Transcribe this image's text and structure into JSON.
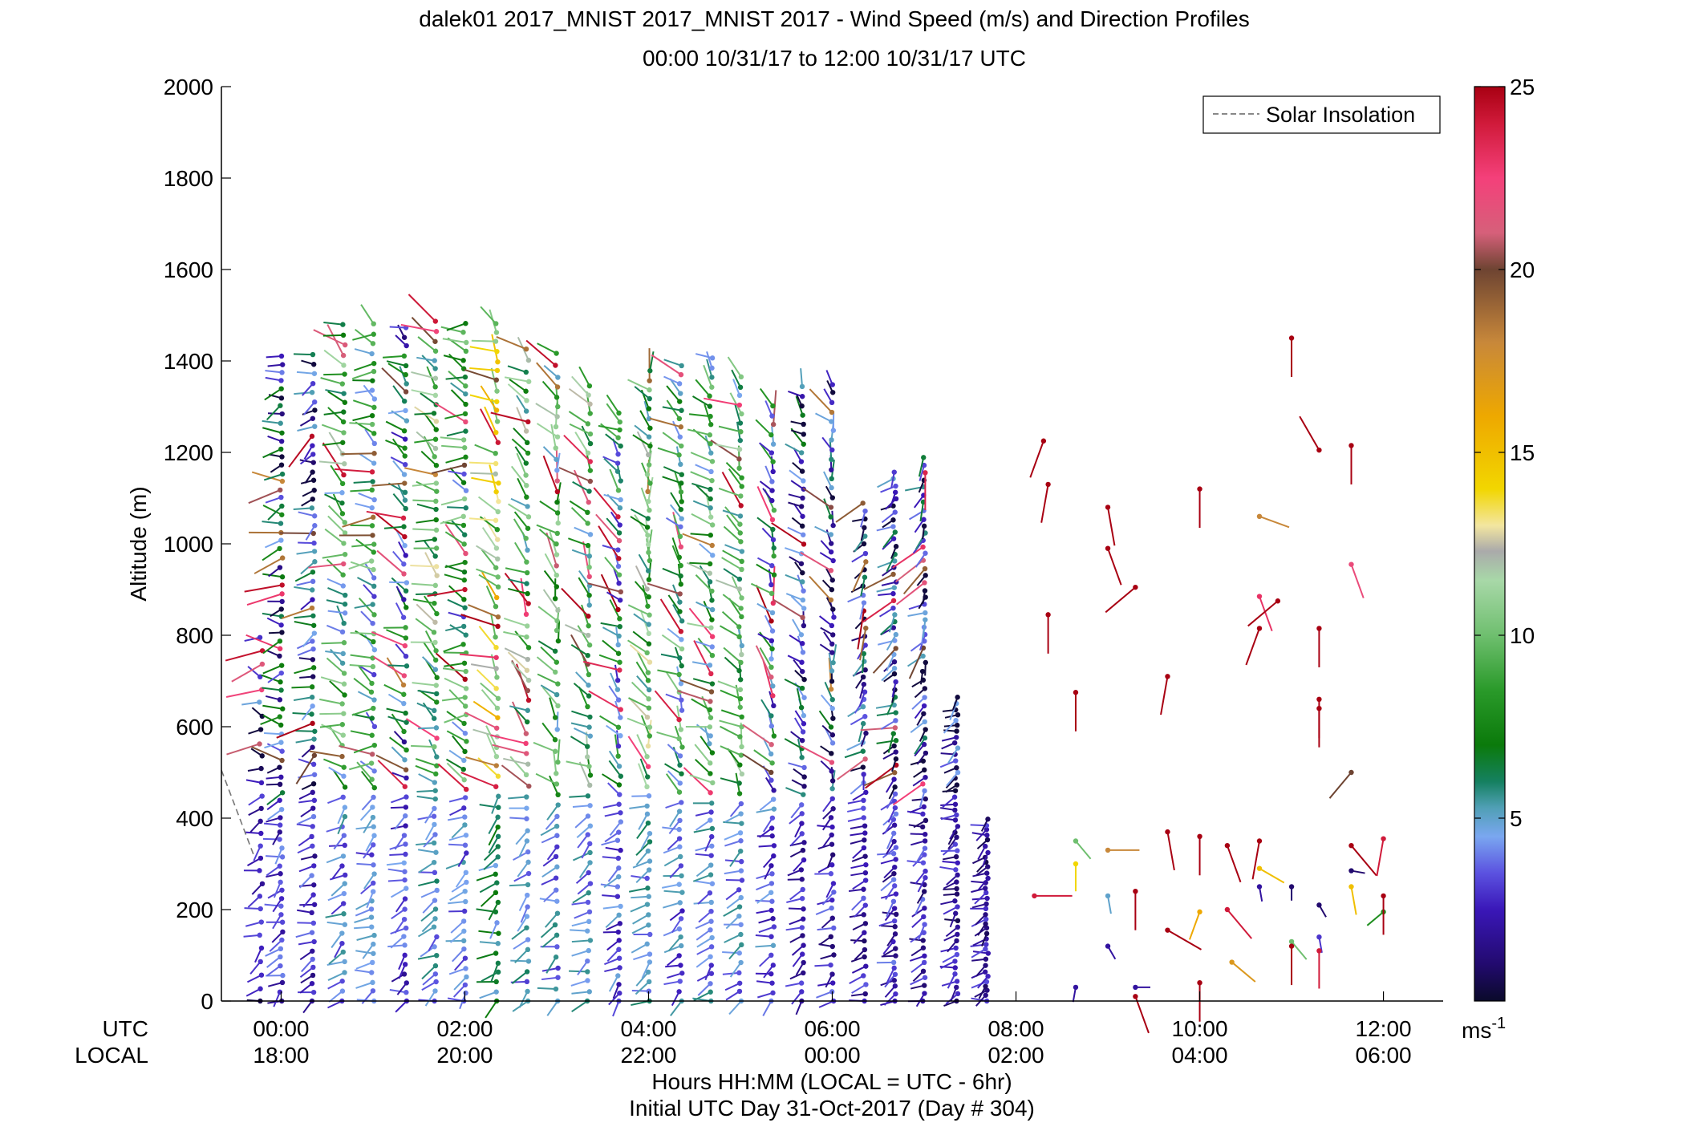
{
  "chart_data": {
    "type": "wind-barb-profile",
    "title_line1": "dalek01 2017_MNIST 2017_MNIST 2017 - Wind Speed (m/s) and Direction Profiles",
    "title_line2": "00:00 10/31/17 to 12:00 10/31/17  UTC",
    "ylabel": "Altitude (m)",
    "xlabel": "Hours HH:MM  (LOCAL = UTC - 6hr)",
    "xlabel2": "Initial UTC Day 31-Oct-2017 (Day # 304)",
    "utc_row_label": "UTC",
    "local_row_label": "LOCAL",
    "xlim_hours": [
      -0.65,
      12.65
    ],
    "ylim": [
      0,
      2000
    ],
    "y_ticks": [
      0,
      200,
      400,
      600,
      800,
      1000,
      1200,
      1400,
      1600,
      1800,
      2000
    ],
    "x_ticks_hours": [
      0,
      2,
      4,
      6,
      8,
      10,
      12
    ],
    "x_tick_labels_utc": [
      "00:00",
      "02:00",
      "04:00",
      "06:00",
      "08:00",
      "10:00",
      "12:00"
    ],
    "x_tick_labels_local": [
      "18:00",
      "20:00",
      "22:00",
      "00:00",
      "02:00",
      "04:00",
      "06:00"
    ],
    "legend": {
      "label": "Solar Insolation",
      "location": "top-right",
      "style": "dashed-gray"
    },
    "solar_insolation_line": {
      "color": "#777777",
      "x_hours": [
        -0.65,
        -0.3
      ],
      "y": [
        505,
        320
      ]
    },
    "colorbar": {
      "range": [
        0,
        25
      ],
      "ticks": [
        5,
        10,
        15,
        20,
        25
      ],
      "unit_label": "ms",
      "unit_exponent": "-1",
      "stops": [
        {
          "v": 0,
          "c": "#0a0a2a"
        },
        {
          "v": 1,
          "c": "#220a6e"
        },
        {
          "v": 2.5,
          "c": "#3a17b8"
        },
        {
          "v": 3.5,
          "c": "#5b52e0"
        },
        {
          "v": 4.5,
          "c": "#7aa7f0"
        },
        {
          "v": 5.3,
          "c": "#4f9fb4"
        },
        {
          "v": 6,
          "c": "#158060"
        },
        {
          "v": 7,
          "c": "#0b7a0b"
        },
        {
          "v": 8.5,
          "c": "#2a9a2a"
        },
        {
          "v": 10,
          "c": "#6fbf6f"
        },
        {
          "v": 11.5,
          "c": "#a8d8a8"
        },
        {
          "v": 12.3,
          "c": "#aaaaaa"
        },
        {
          "v": 13,
          "c": "#f3e6a0"
        },
        {
          "v": 14,
          "c": "#f2d600"
        },
        {
          "v": 16,
          "c": "#eea800"
        },
        {
          "v": 18,
          "c": "#c8883a"
        },
        {
          "v": 20,
          "c": "#6e4432"
        },
        {
          "v": 21,
          "c": "#d6607a"
        },
        {
          "v": 22.5,
          "c": "#f4407a"
        },
        {
          "v": 24,
          "c": "#d01a3a"
        },
        {
          "v": 25,
          "c": "#a80012"
        }
      ]
    },
    "profiles": [
      {
        "t": -0.22,
        "spd": 1.5,
        "dir": 280,
        "alt_range": [
          0,
          800
        ],
        "spacing": 30
      },
      {
        "t": 0.0,
        "spd": 4.0,
        "dir": 260,
        "alt_range": [
          0,
          1420
        ],
        "spacing": 18
      },
      {
        "t": 0.35,
        "spd": 3.5,
        "dir": 250,
        "alt_range": [
          0,
          1420
        ],
        "spacing": 20
      },
      {
        "t": 0.68,
        "spd": 8.0,
        "dir": 300,
        "alt_range": [
          0,
          1490
        ],
        "spacing": 22
      },
      {
        "t": 1.0,
        "spd": 7.0,
        "dir": 290,
        "alt_range": [
          0,
          1490
        ],
        "spacing": 20
      },
      {
        "t": 1.35,
        "spd": 5.0,
        "dir": 300,
        "alt_range": [
          0,
          1490
        ],
        "spacing": 20
      },
      {
        "t": 1.68,
        "spd": 9.0,
        "dir": 300,
        "alt_range": [
          0,
          1490
        ],
        "spacing": 20
      },
      {
        "t": 2.0,
        "spd": 7.0,
        "dir": 290,
        "alt_range": [
          0,
          1490
        ],
        "spacing": 20
      },
      {
        "t": 2.35,
        "spd": 12.0,
        "dir": 310,
        "alt_range": [
          0,
          1490
        ],
        "spacing": 22
      },
      {
        "t": 2.68,
        "spd": 9.0,
        "dir": 320,
        "alt_range": [
          0,
          1450
        ],
        "spacing": 24
      },
      {
        "t": 3.0,
        "spd": 8.0,
        "dir": 330,
        "alt_range": [
          0,
          1420
        ],
        "spacing": 24
      },
      {
        "t": 3.35,
        "spd": 8.5,
        "dir": 320,
        "alt_range": [
          0,
          1350
        ],
        "spacing": 22
      },
      {
        "t": 3.68,
        "spd": 6.0,
        "dir": 320,
        "alt_range": [
          0,
          1300
        ],
        "spacing": 20
      },
      {
        "t": 4.0,
        "spd": 9.0,
        "dir": 330,
        "alt_range": [
          0,
          1390
        ],
        "spacing": 20
      },
      {
        "t": 4.35,
        "spd": 7.0,
        "dir": 320,
        "alt_range": [
          0,
          1400
        ],
        "spacing": 20
      },
      {
        "t": 4.68,
        "spd": 8.0,
        "dir": 310,
        "alt_range": [
          0,
          1420
        ],
        "spacing": 20
      },
      {
        "t": 5.0,
        "spd": 8.0,
        "dir": 320,
        "alt_range": [
          0,
          1380
        ],
        "spacing": 20
      },
      {
        "t": 5.35,
        "spd": 6.0,
        "dir": 330,
        "alt_range": [
          0,
          1320
        ],
        "spacing": 20
      },
      {
        "t": 5.68,
        "spd": 3.0,
        "dir": 320,
        "alt_range": [
          0,
          1350
        ],
        "spacing": 20
      },
      {
        "t": 6.0,
        "spd": 3.0,
        "dir": 330,
        "alt_range": [
          0,
          1350
        ],
        "spacing": 20
      },
      {
        "t": 6.35,
        "spd": 2.5,
        "dir": 220,
        "alt_range": [
          0,
          1100
        ],
        "spacing": 18
      },
      {
        "t": 6.68,
        "spd": 3.0,
        "dir": 230,
        "alt_range": [
          0,
          1170
        ],
        "spacing": 14
      },
      {
        "t": 7.0,
        "spd": 2.5,
        "dir": 220,
        "alt_range": [
          0,
          1200
        ],
        "spacing": 16
      },
      {
        "t": 7.35,
        "spd": 1.5,
        "dir": 240,
        "alt_range": [
          0,
          680
        ],
        "spacing": 12
      },
      {
        "t": 7.68,
        "spd": 1.2,
        "dir": 250,
        "alt_range": [
          0,
          400
        ],
        "spacing": 10
      }
    ],
    "scattered_barbs": [
      {
        "t": 8.3,
        "alt": 1225,
        "spd": 25,
        "dir": 200
      },
      {
        "t": 8.35,
        "alt": 1130,
        "spd": 25,
        "dir": 190
      },
      {
        "t": 8.35,
        "alt": 845,
        "spd": 25,
        "dir": 180
      },
      {
        "t": 8.2,
        "alt": 230,
        "spd": 24,
        "dir": 90
      },
      {
        "t": 8.65,
        "alt": 675,
        "spd": 25,
        "dir": 180
      },
      {
        "t": 9.0,
        "alt": 1080,
        "spd": 25,
        "dir": 170
      },
      {
        "t": 9.0,
        "alt": 990,
        "spd": 25,
        "dir": 160
      },
      {
        "t": 9.3,
        "alt": 905,
        "spd": 25,
        "dir": 230
      },
      {
        "t": 9.65,
        "alt": 710,
        "spd": 25,
        "dir": 190
      },
      {
        "t": 10.0,
        "alt": 1120,
        "spd": 25,
        "dir": 180
      },
      {
        "t": 10.65,
        "alt": 1060,
        "spd": 18,
        "dir": 110
      },
      {
        "t": 10.65,
        "alt": 885,
        "spd": 23,
        "dir": 160
      },
      {
        "t": 10.65,
        "alt": 815,
        "spd": 25,
        "dir": 200
      },
      {
        "t": 10.85,
        "alt": 875,
        "spd": 25,
        "dir": 230
      },
      {
        "t": 11.0,
        "alt": 1450,
        "spd": 25,
        "dir": 180
      },
      {
        "t": 11.3,
        "alt": 1205,
        "spd": 25,
        "dir": 330
      },
      {
        "t": 11.65,
        "alt": 1215,
        "spd": 25,
        "dir": 180
      },
      {
        "t": 11.65,
        "alt": 955,
        "spd": 22,
        "dir": 160
      },
      {
        "t": 11.3,
        "alt": 815,
        "spd": 25,
        "dir": 180
      },
      {
        "t": 11.3,
        "alt": 640,
        "spd": 25,
        "dir": 180
      },
      {
        "t": 11.65,
        "alt": 500,
        "spd": 20,
        "dir": 220
      },
      {
        "t": 11.3,
        "alt": 660,
        "spd": 25,
        "dir": 180
      },
      {
        "t": 8.65,
        "alt": 350,
        "spd": 10,
        "dir": 140
      },
      {
        "t": 8.65,
        "alt": 300,
        "spd": 14,
        "dir": 180
      },
      {
        "t": 9.0,
        "alt": 330,
        "spd": 18,
        "dir": 90
      },
      {
        "t": 9.65,
        "alt": 370,
        "spd": 25,
        "dir": 170
      },
      {
        "t": 10.0,
        "alt": 360,
        "spd": 25,
        "dir": 180
      },
      {
        "t": 10.3,
        "alt": 340,
        "spd": 25,
        "dir": 160
      },
      {
        "t": 10.65,
        "alt": 350,
        "spd": 25,
        "dir": 190
      },
      {
        "t": 10.65,
        "alt": 290,
        "spd": 15,
        "dir": 120
      },
      {
        "t": 11.65,
        "alt": 340,
        "spd": 25,
        "dir": 140
      },
      {
        "t": 12.0,
        "alt": 355,
        "spd": 24,
        "dir": 190
      },
      {
        "t": 11.65,
        "alt": 250,
        "spd": 15,
        "dir": 170
      },
      {
        "t": 12.0,
        "alt": 195,
        "spd": 8,
        "dir": 230
      },
      {
        "t": 12.0,
        "alt": 230,
        "spd": 25,
        "dir": 180
      },
      {
        "t": 10.0,
        "alt": 195,
        "spd": 16,
        "dir": 200
      },
      {
        "t": 10.0,
        "alt": 40,
        "spd": 25,
        "dir": 180
      },
      {
        "t": 10.35,
        "alt": 85,
        "spd": 17,
        "dir": 130
      },
      {
        "t": 9.65,
        "alt": 155,
        "spd": 25,
        "dir": 120
      },
      {
        "t": 10.3,
        "alt": 200,
        "spd": 24,
        "dir": 140
      },
      {
        "t": 9.3,
        "alt": 240,
        "spd": 25,
        "dir": 180
      },
      {
        "t": 9.3,
        "alt": 10,
        "spd": 25,
        "dir": 160
      },
      {
        "t": 9.0,
        "alt": 230,
        "spd": 5,
        "dir": 170
      },
      {
        "t": 8.65,
        "alt": 30,
        "spd": 2,
        "dir": 190
      },
      {
        "t": 9.0,
        "alt": 120,
        "spd": 2,
        "dir": 150
      },
      {
        "t": 9.3,
        "alt": 30,
        "spd": 2,
        "dir": 90
      },
      {
        "t": 11.0,
        "alt": 250,
        "spd": 1,
        "dir": 180
      },
      {
        "t": 11.0,
        "alt": 130,
        "spd": 10,
        "dir": 140
      },
      {
        "t": 11.3,
        "alt": 140,
        "spd": 3,
        "dir": 170
      },
      {
        "t": 11.3,
        "alt": 110,
        "spd": 24,
        "dir": 180
      },
      {
        "t": 11.0,
        "alt": 120,
        "spd": 25,
        "dir": 180
      },
      {
        "t": 10.65,
        "alt": 250,
        "spd": 2,
        "dir": 170
      },
      {
        "t": 11.3,
        "alt": 210,
        "spd": 1,
        "dir": 150
      },
      {
        "t": 11.65,
        "alt": 285,
        "spd": 1,
        "dir": 100
      }
    ]
  }
}
